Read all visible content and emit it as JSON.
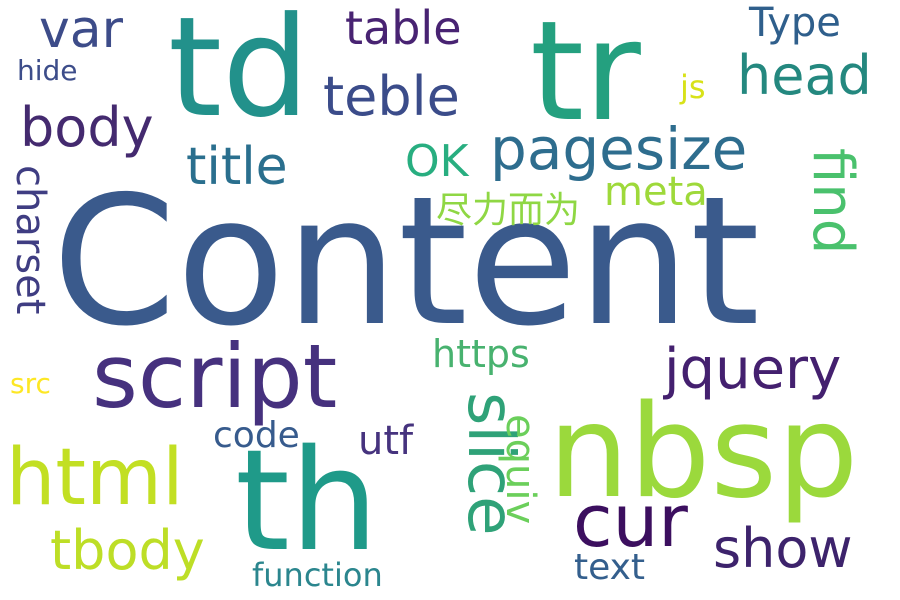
{
  "cloud": {
    "colors": {
      "content": "#3a5a8c",
      "td": "#22918b",
      "tr": "#24a07f",
      "th": "#1f9a89",
      "nbsp": "#9bd93c",
      "script": "#46317e",
      "html": "#c2df23",
      "cur": "#3c0f5f",
      "jquery": "#44206f",
      "pagesize": "#2e6d8e",
      "head": "#24887f",
      "teble": "#3b4c8a",
      "body": "#442a6f",
      "var": "#3d4c89",
      "title": "#2a6f8e",
      "slice": "#2fa278",
      "tbody": "#bdde26",
      "show": "#3d236c",
      "find": "#4ac16d",
      "charset": "#3f3d82",
      "table": "#482372",
      "type": "#2f5f8c",
      "https": "#48b26f",
      "equiv": "#6bcf5b",
      "meta": "#9ed93a",
      "ok": "#28ae80",
      "zhi": "#8fd744",
      "utf": "#46337e",
      "code": "#375b8d",
      "text": "#345f8d",
      "function": "#2b868e",
      "hide": "#3d4d8a",
      "js": "#d8e219",
      "src": "#fde725"
    },
    "words": [
      {
        "key": "content",
        "text": "Content"
      },
      {
        "key": "td",
        "text": "td"
      },
      {
        "key": "tr",
        "text": "tr"
      },
      {
        "key": "th",
        "text": "th"
      },
      {
        "key": "nbsp",
        "text": "nbsp"
      },
      {
        "key": "script",
        "text": "script"
      },
      {
        "key": "html",
        "text": "html"
      },
      {
        "key": "cur",
        "text": "cur"
      },
      {
        "key": "jquery",
        "text": "jquery"
      },
      {
        "key": "pagesize",
        "text": "pagesize"
      },
      {
        "key": "head",
        "text": "head"
      },
      {
        "key": "teble",
        "text": "teble"
      },
      {
        "key": "body",
        "text": "body"
      },
      {
        "key": "var",
        "text": "var"
      },
      {
        "key": "title",
        "text": "title"
      },
      {
        "key": "slice",
        "text": "slice"
      },
      {
        "key": "tbody",
        "text": "tbody"
      },
      {
        "key": "show",
        "text": "show"
      },
      {
        "key": "find",
        "text": "find"
      },
      {
        "key": "charset",
        "text": "charset"
      },
      {
        "key": "table",
        "text": "table"
      },
      {
        "key": "type",
        "text": "Type"
      },
      {
        "key": "https",
        "text": "https"
      },
      {
        "key": "equiv",
        "text": "equiv"
      },
      {
        "key": "meta",
        "text": "meta"
      },
      {
        "key": "ok",
        "text": "OK"
      },
      {
        "key": "zhi",
        "text": "尽力而为"
      },
      {
        "key": "utf",
        "text": "utf"
      },
      {
        "key": "code",
        "text": "code"
      },
      {
        "key": "text",
        "text": "text"
      },
      {
        "key": "function",
        "text": "function"
      },
      {
        "key": "hide",
        "text": "hide"
      },
      {
        "key": "js",
        "text": "js"
      },
      {
        "key": "src",
        "text": "src"
      }
    ]
  }
}
